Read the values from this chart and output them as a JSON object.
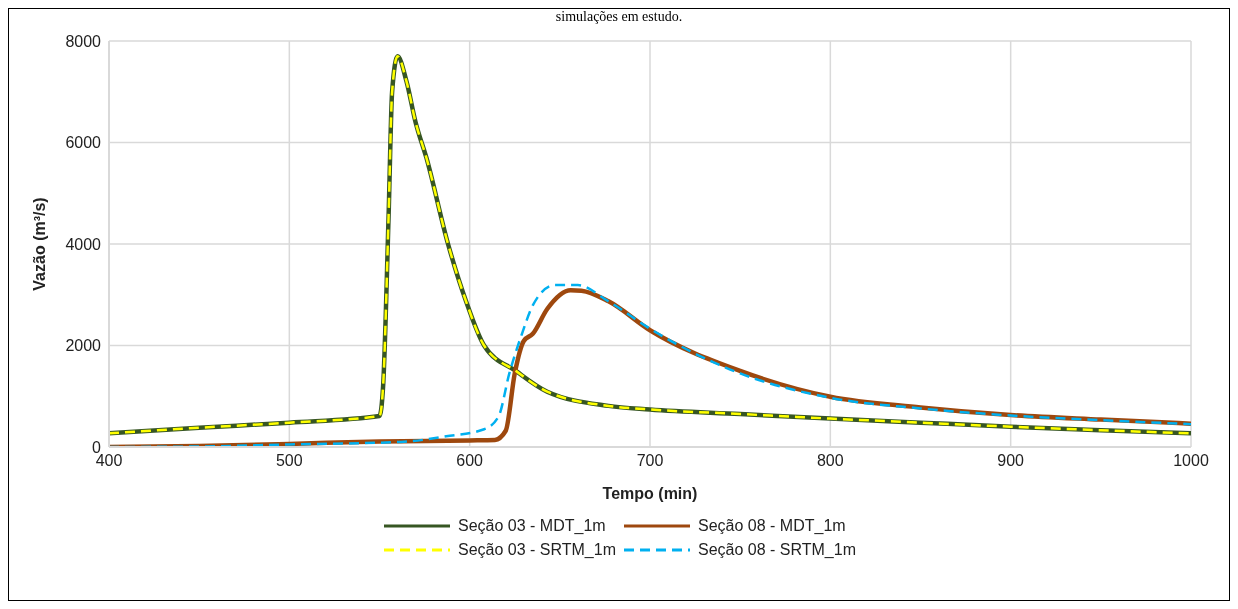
{
  "chart_data": {
    "type": "line",
    "title": "simulações em estudo.",
    "xlabel": "Tempo (min)",
    "ylabel": "Vazão (m³/s)",
    "xlim": [
      400,
      1000
    ],
    "xticks": [
      400,
      500,
      600,
      700,
      800,
      900,
      1000
    ],
    "ylim": [
      0,
      8000
    ],
    "yticks": [
      0,
      2000,
      4000,
      6000,
      8000
    ],
    "grid": true,
    "legend": "bottom",
    "marker": "none",
    "series": [
      {
        "name": "Seção 03 - MDT_1m",
        "color": "#375623",
        "line_style": "solid",
        "x": [
          400,
          450,
          500,
          550,
          552,
          555,
          557,
          560,
          565,
          570,
          576,
          588,
          598,
          608,
          626,
          643,
          677,
          700,
          750,
          800,
          850,
          900,
          950,
          1000
        ],
        "values": [
          270,
          380,
          480,
          610,
          1200,
          4500,
          7000,
          7700,
          7200,
          6400,
          5700,
          4000,
          2870,
          2000,
          1490,
          1090,
          810,
          740,
          650,
          560,
          480,
          400,
          330,
          270
        ]
      },
      {
        "name": "Seção 08 - MDT_1m",
        "color": "#9e480e",
        "line_style": "solid",
        "x": [
          400,
          450,
          500,
          550,
          600,
          614,
          620,
          625,
          630,
          635,
          643,
          656,
          662,
          677,
          700,
          750,
          800,
          850,
          900,
          950,
          1000
        ],
        "values": [
          0,
          20,
          60,
          110,
          130,
          140,
          320,
          1450,
          2090,
          2230,
          2720,
          3090,
          3080,
          2870,
          2300,
          1500,
          990,
          780,
          630,
          540,
          460
        ]
      },
      {
        "name": "Seção 03 - SRTM_1m",
        "color": "#ffff00",
        "line_style": "dashed",
        "x": [
          400,
          450,
          500,
          550,
          552,
          555,
          557,
          560,
          565,
          570,
          576,
          588,
          598,
          608,
          626,
          643,
          677,
          700,
          750,
          800,
          850,
          900,
          950,
          1000
        ],
        "values": [
          270,
          380,
          480,
          610,
          1200,
          4500,
          7000,
          7700,
          7200,
          6400,
          5700,
          4000,
          2870,
          2000,
          1490,
          1090,
          810,
          740,
          650,
          560,
          480,
          400,
          330,
          270
        ]
      },
      {
        "name": "Seção 08 - SRTM_1m",
        "color": "#00b0f0",
        "line_style": "dashed",
        "x": [
          400,
          450,
          500,
          562,
          587,
          608,
          616,
          622,
          629,
          635,
          647,
          660,
          677,
          700,
          750,
          800,
          850,
          900,
          950,
          1000
        ],
        "values": [
          0,
          10,
          50,
          100,
          210,
          350,
          600,
          1450,
          2230,
          2790,
          3190,
          3190,
          2870,
          2330,
          1450,
          970,
          760,
          620,
          530,
          450
        ]
      }
    ]
  }
}
